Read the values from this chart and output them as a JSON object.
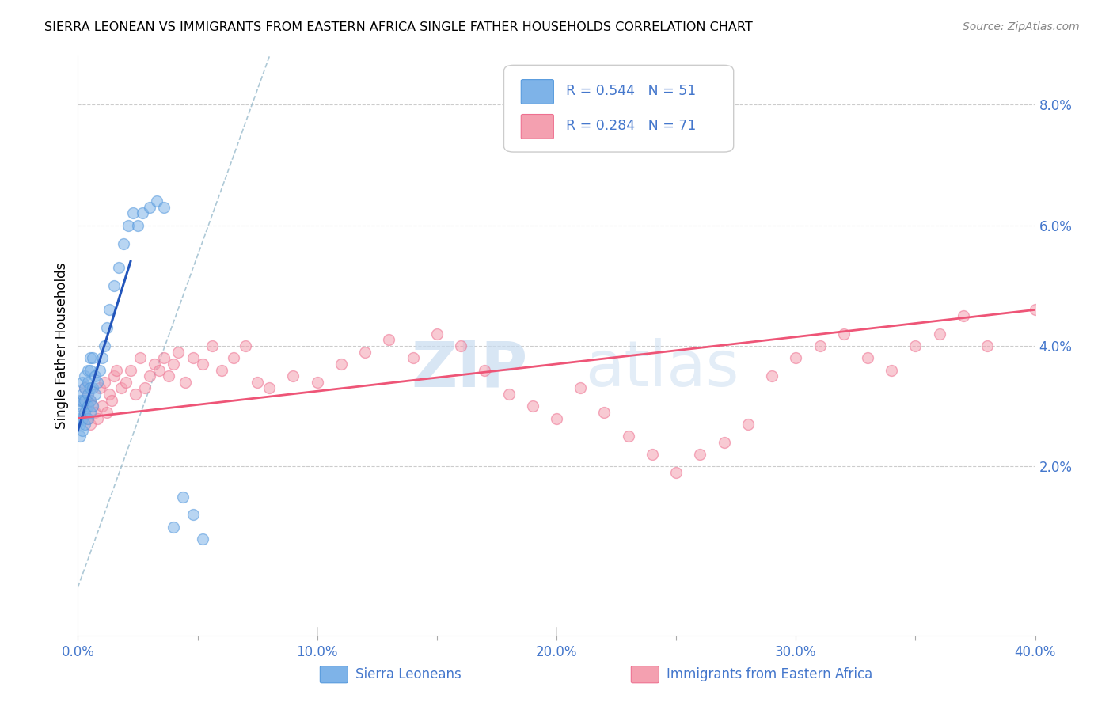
{
  "title": "SIERRA LEONEAN VS IMMIGRANTS FROM EASTERN AFRICA SINGLE FATHER HOUSEHOLDS CORRELATION CHART",
  "source": "Source: ZipAtlas.com",
  "ylabel_left": "Single Father Households",
  "x_ticks": [
    0.0,
    0.05,
    0.1,
    0.15,
    0.2,
    0.25,
    0.3,
    0.35,
    0.4
  ],
  "x_tick_labels": [
    "0.0%",
    "",
    "10.0%",
    "",
    "20.0%",
    "",
    "30.0%",
    "",
    "40.0%"
  ],
  "y_ticks_right": [
    0.0,
    0.02,
    0.04,
    0.06,
    0.08
  ],
  "y_tick_labels_right": [
    "",
    "2.0%",
    "4.0%",
    "6.0%",
    "8.0%"
  ],
  "xlim": [
    0.0,
    0.4
  ],
  "ylim": [
    -0.008,
    0.088
  ],
  "legend_r1": "R = 0.544",
  "legend_n1": "N = 51",
  "legend_r2": "R = 0.284",
  "legend_n2": "N = 71",
  "color_blue": "#7EB3E8",
  "color_blue_edge": "#5599DD",
  "color_pink": "#F4A0B0",
  "color_pink_edge": "#EE7090",
  "color_trend_blue": "#2255BB",
  "color_trend_pink": "#EE5577",
  "color_ref_line": "#99BBCC",
  "color_grid": "#CCCCCC",
  "color_text_blue": "#4477CC",
  "sierra_leone_x": [
    0.001,
    0.001,
    0.001,
    0.001,
    0.001,
    0.002,
    0.002,
    0.002,
    0.002,
    0.002,
    0.002,
    0.003,
    0.003,
    0.003,
    0.003,
    0.003,
    0.004,
    0.004,
    0.004,
    0.004,
    0.004,
    0.005,
    0.005,
    0.005,
    0.005,
    0.005,
    0.006,
    0.006,
    0.006,
    0.007,
    0.007,
    0.008,
    0.009,
    0.01,
    0.011,
    0.012,
    0.013,
    0.015,
    0.017,
    0.019,
    0.021,
    0.023,
    0.025,
    0.027,
    0.03,
    0.033,
    0.036,
    0.04,
    0.044,
    0.048,
    0.052
  ],
  "sierra_leone_y": [
    0.025,
    0.027,
    0.028,
    0.03,
    0.031,
    0.026,
    0.028,
    0.029,
    0.031,
    0.032,
    0.034,
    0.027,
    0.029,
    0.031,
    0.033,
    0.035,
    0.028,
    0.03,
    0.032,
    0.034,
    0.036,
    0.029,
    0.031,
    0.033,
    0.036,
    0.038,
    0.03,
    0.033,
    0.038,
    0.032,
    0.035,
    0.034,
    0.036,
    0.038,
    0.04,
    0.043,
    0.046,
    0.05,
    0.053,
    0.057,
    0.06,
    0.062,
    0.06,
    0.062,
    0.063,
    0.064,
    0.063,
    0.01,
    0.015,
    0.012,
    0.008
  ],
  "eastern_africa_x": [
    0.002,
    0.003,
    0.003,
    0.004,
    0.004,
    0.005,
    0.005,
    0.006,
    0.007,
    0.008,
    0.009,
    0.01,
    0.011,
    0.012,
    0.013,
    0.014,
    0.015,
    0.016,
    0.018,
    0.02,
    0.022,
    0.024,
    0.026,
    0.028,
    0.03,
    0.032,
    0.034,
    0.036,
    0.038,
    0.04,
    0.042,
    0.045,
    0.048,
    0.052,
    0.056,
    0.06,
    0.065,
    0.07,
    0.075,
    0.08,
    0.09,
    0.1,
    0.11,
    0.12,
    0.13,
    0.14,
    0.15,
    0.16,
    0.17,
    0.18,
    0.19,
    0.2,
    0.21,
    0.22,
    0.23,
    0.24,
    0.25,
    0.26,
    0.27,
    0.28,
    0.29,
    0.3,
    0.31,
    0.32,
    0.33,
    0.34,
    0.35,
    0.36,
    0.37,
    0.38,
    0.4
  ],
  "eastern_africa_y": [
    0.031,
    0.029,
    0.033,
    0.028,
    0.032,
    0.027,
    0.031,
    0.03,
    0.029,
    0.028,
    0.033,
    0.03,
    0.034,
    0.029,
    0.032,
    0.031,
    0.035,
    0.036,
    0.033,
    0.034,
    0.036,
    0.032,
    0.038,
    0.033,
    0.035,
    0.037,
    0.036,
    0.038,
    0.035,
    0.037,
    0.039,
    0.034,
    0.038,
    0.037,
    0.04,
    0.036,
    0.038,
    0.04,
    0.034,
    0.033,
    0.035,
    0.034,
    0.037,
    0.039,
    0.041,
    0.038,
    0.042,
    0.04,
    0.036,
    0.032,
    0.03,
    0.028,
    0.033,
    0.029,
    0.025,
    0.022,
    0.019,
    0.022,
    0.024,
    0.027,
    0.035,
    0.038,
    0.04,
    0.042,
    0.038,
    0.036,
    0.04,
    0.042,
    0.045,
    0.04,
    0.046
  ],
  "blue_trend_x0": 0.0,
  "blue_trend_y0": 0.026,
  "blue_trend_x1": 0.022,
  "blue_trend_y1": 0.054,
  "pink_trend_x0": 0.0,
  "pink_trend_y0": 0.028,
  "pink_trend_x1": 0.4,
  "pink_trend_y1": 0.046,
  "ref_line_x0": 0.0,
  "ref_line_y0": 0.0,
  "ref_line_x1": 0.08,
  "ref_line_y1": 0.088
}
